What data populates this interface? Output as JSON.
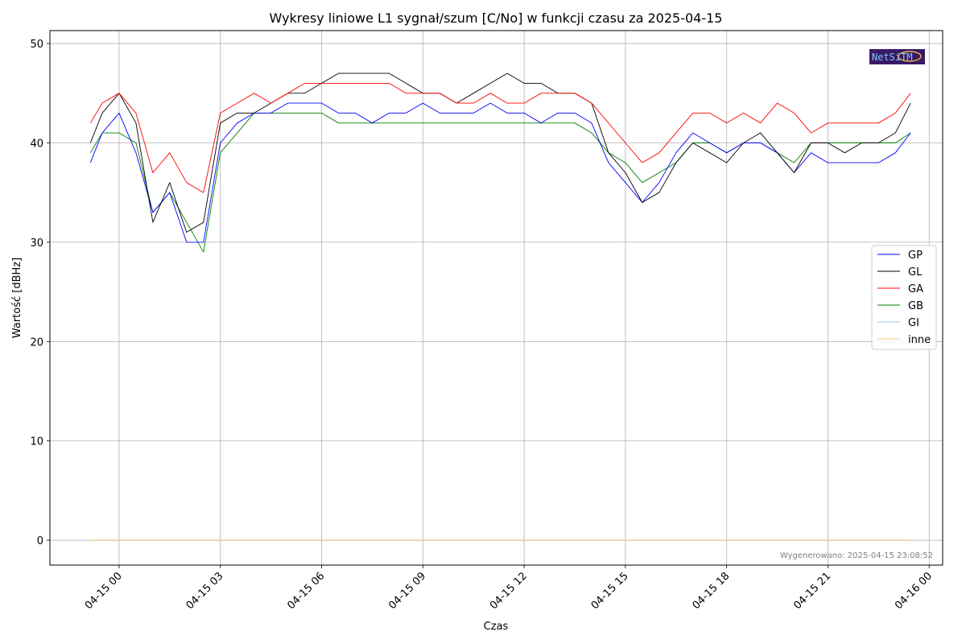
{
  "chart_data": {
    "type": "line",
    "title": "Wykresy liniowe L1 sygnał/szum [C/No] w funkcji czasu za 2025-04-15",
    "xlabel": "Czas",
    "ylabel": "Wartość [dBHz]",
    "x_ticks": [
      "04-15 00",
      "04-15 03",
      "04-15 06",
      "04-15 09",
      "04-15 12",
      "04-15 15",
      "04-15 18",
      "04-15 21",
      "04-16 00"
    ],
    "y_ticks": [
      "0",
      "10",
      "20",
      "30",
      "40",
      "50"
    ],
    "ylim": [
      -2.5,
      51.3
    ],
    "xlim_hours": [
      -2.05,
      24.4
    ],
    "grid": true,
    "legend_position": "right-center",
    "x_hours": [
      -0.85,
      -0.5,
      0,
      0.5,
      1.0,
      1.5,
      2.0,
      2.5,
      3.0,
      3.5,
      4.0,
      4.5,
      5.0,
      5.5,
      6.0,
      6.5,
      7.0,
      7.5,
      8.0,
      8.5,
      9.0,
      9.5,
      10.0,
      10.5,
      11.0,
      11.5,
      12.0,
      12.5,
      13.0,
      13.5,
      14.0,
      14.5,
      15.0,
      15.5,
      16.0,
      16.5,
      17.0,
      17.5,
      18.0,
      18.5,
      19.0,
      19.5,
      20.0,
      20.5,
      21.0,
      21.5,
      22.0,
      22.5,
      23.0,
      23.45
    ],
    "series": [
      {
        "name": "GP",
        "color": "#0000ff",
        "values": [
          38,
          41,
          43,
          39,
          33,
          35,
          30,
          30,
          40,
          42,
          43,
          43,
          44,
          44,
          44,
          43,
          43,
          42,
          43,
          43,
          44,
          43,
          43,
          43,
          44,
          43,
          43,
          42,
          43,
          43,
          42,
          38,
          36,
          34,
          36,
          39,
          41,
          40,
          39,
          40,
          40,
          39,
          37,
          39,
          38,
          38,
          38,
          38,
          39,
          41
        ]
      },
      {
        "name": "GL",
        "color": "#000000",
        "values": [
          40,
          43,
          45,
          42,
          32,
          36,
          31,
          32,
          42,
          43,
          43,
          44,
          45,
          45,
          46,
          47,
          47,
          47,
          47,
          46,
          45,
          45,
          44,
          45,
          46,
          47,
          46,
          46,
          45,
          45,
          44,
          39,
          37,
          34,
          35,
          38,
          40,
          39,
          38,
          40,
          41,
          39,
          37,
          40,
          40,
          39,
          40,
          40,
          41,
          44
        ]
      },
      {
        "name": "GA",
        "color": "#ff0000",
        "values": [
          42,
          44,
          45,
          43,
          37,
          39,
          36,
          35,
          43,
          44,
          45,
          44,
          45,
          46,
          46,
          46,
          46,
          46,
          46,
          45,
          45,
          45,
          44,
          44,
          45,
          44,
          44,
          45,
          45,
          45,
          44,
          42,
          40,
          38,
          39,
          41,
          43,
          43,
          42,
          43,
          42,
          44,
          43,
          41,
          42,
          42,
          42,
          42,
          43,
          45
        ]
      },
      {
        "name": "GB",
        "color": "#008000",
        "values": [
          39,
          41,
          41,
          40,
          33,
          35,
          32,
          29,
          39,
          41,
          43,
          43,
          43,
          43,
          43,
          42,
          42,
          42,
          42,
          42,
          42,
          42,
          42,
          42,
          42,
          42,
          42,
          42,
          42,
          42,
          41,
          39,
          38,
          36,
          37,
          38,
          40,
          40,
          39,
          40,
          40,
          39,
          38,
          40,
          40,
          40,
          40,
          40,
          40,
          41
        ]
      },
      {
        "name": "GI",
        "color": "#9fc7ef",
        "values": [
          0,
          0,
          0,
          0,
          0,
          0,
          0,
          0,
          0,
          0,
          0,
          0,
          0,
          0,
          0,
          0,
          0,
          0,
          0,
          0,
          0,
          0,
          0,
          0,
          0,
          0,
          0,
          0,
          0,
          0,
          0,
          0,
          0,
          0,
          0,
          0,
          0,
          0,
          0,
          0,
          0,
          0,
          0,
          0,
          0,
          0,
          0,
          0,
          0,
          0
        ]
      },
      {
        "name": "inne",
        "color": "#f5c08a",
        "values": [
          0,
          0,
          0,
          0,
          0,
          0,
          0,
          0,
          0,
          0,
          0,
          0,
          0,
          0,
          0,
          0,
          0,
          0,
          0,
          0,
          0,
          0,
          0,
          0,
          0,
          0,
          0,
          0,
          0,
          0,
          0,
          0,
          0,
          0,
          0,
          0,
          0,
          0,
          0,
          0,
          0,
          0,
          0,
          0,
          0,
          0,
          0,
          0,
          0,
          0
        ]
      }
    ]
  },
  "footer": {
    "generated": "Wygenerowano: 2025-04-15 23:08:52"
  },
  "logo": {
    "text": "NetSiTM"
  }
}
